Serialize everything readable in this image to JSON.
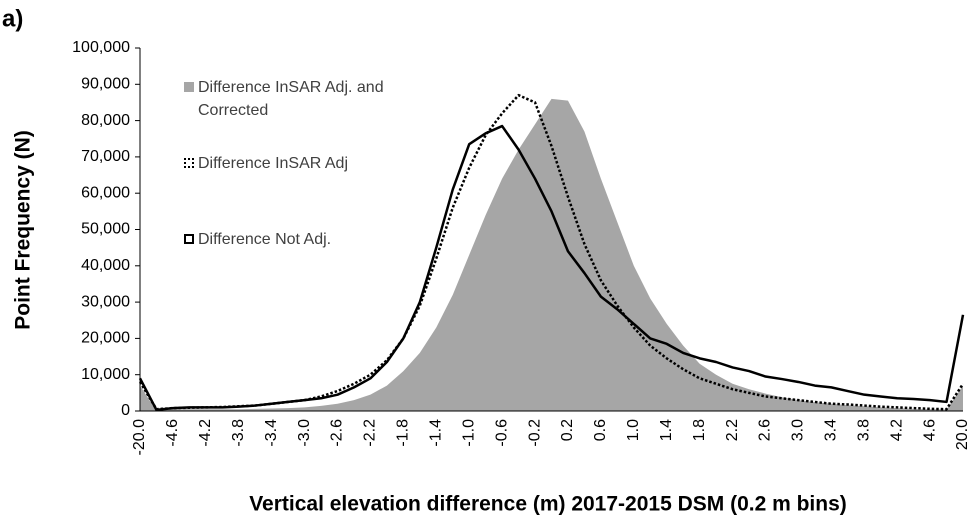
{
  "chart_data": {
    "type": "line",
    "panel_label": "a)",
    "x_label": "Vertical elevation difference (m) 2017-2015 DSM (0.2 m bins)",
    "y_label": "Point Frequency (N)",
    "categories": [
      "-20.0",
      null,
      "-4.6",
      null,
      "-4.2",
      null,
      "-3.8",
      null,
      "-3.4",
      null,
      "-3.0",
      null,
      "-2.6",
      null,
      "-2.2",
      null,
      "-1.8",
      null,
      "-1.4",
      null,
      "-1.0",
      null,
      "-0.6",
      null,
      "-0.2",
      null,
      "0.2",
      null,
      "0.6",
      null,
      "1.0",
      null,
      "1.4",
      null,
      "1.8",
      null,
      "2.2",
      null,
      "2.6",
      null,
      "3.0",
      null,
      "3.4",
      null,
      "3.8",
      null,
      "4.2",
      null,
      "4.6",
      null,
      "20.0"
    ],
    "ylim": [
      0,
      100000
    ],
    "yticks": [
      0,
      {
        "value": 10000,
        "label": "10,000"
      },
      {
        "value": 20000,
        "label": "20,000"
      },
      {
        "value": 30000,
        "label": "30,000"
      },
      {
        "value": 40000,
        "label": "40,000"
      },
      {
        "value": 50000,
        "label": "50,000"
      },
      {
        "value": 60000,
        "label": "60,000"
      },
      {
        "value": 70000,
        "label": "70,000"
      },
      {
        "value": 80000,
        "label": "80,000"
      },
      {
        "value": 90000,
        "label": "90,000"
      },
      {
        "value": 100000,
        "label": "100,000"
      }
    ],
    "series": [
      {
        "name": "Difference InSAR Adj. and Corrected",
        "color": "#a6a6a6",
        "line_style": "area",
        "values": [
          7000,
          0,
          500,
          500,
          500,
          500,
          500,
          600,
          700,
          800,
          1000,
          1400,
          2000,
          3000,
          4500,
          7000,
          11000,
          16000,
          23000,
          32000,
          43000,
          54000,
          64000,
          72000,
          79000,
          86000,
          85500,
          77000,
          64000,
          52000,
          40000,
          31000,
          24000,
          18000,
          13000,
          10000,
          7500,
          6000,
          4800,
          3800,
          3000,
          2400,
          2000,
          1600,
          1300,
          1000,
          800,
          600,
          500,
          400,
          7000
        ]
      },
      {
        "name": "Difference InSAR Adj",
        "color": "#000000",
        "line_style": "dotted",
        "values": [
          8000,
          500,
          800,
          900,
          1000,
          1100,
          1300,
          1500,
          2000,
          2500,
          3000,
          4000,
          5500,
          7500,
          10000,
          14000,
          20000,
          29000,
          42000,
          56000,
          67000,
          76000,
          82000,
          87000,
          85000,
          73000,
          59000,
          46000,
          36000,
          29000,
          23000,
          18000,
          14500,
          11500,
          9000,
          7500,
          6000,
          5000,
          4000,
          3500,
          3000,
          2500,
          2000,
          1800,
          1500,
          1200,
          1000,
          800,
          600,
          500,
          7500
        ]
      },
      {
        "name": "Difference Not Adj.",
        "color": "#000000",
        "line_style": "solid",
        "values": [
          9000,
          300,
          800,
          1000,
          1000,
          1000,
          1200,
          1500,
          2000,
          2500,
          3000,
          3500,
          4500,
          6500,
          9000,
          13500,
          20000,
          30000,
          45000,
          61000,
          73500,
          76500,
          78500,
          72000,
          64000,
          55000,
          44000,
          38000,
          31500,
          28000,
          24000,
          20000,
          18500,
          16000,
          14500,
          13500,
          12000,
          11000,
          9500,
          8800,
          8000,
          7000,
          6500,
          5500,
          4500,
          4000,
          3500,
          3300,
          3000,
          2500,
          26500
        ]
      }
    ]
  }
}
